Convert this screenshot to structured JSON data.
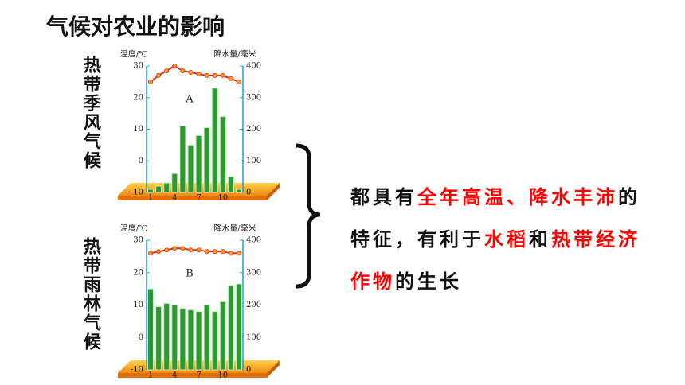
{
  "slide": {
    "title": "气候对农业的影响",
    "labels": [
      "热带季风气候",
      "热带雨林气候"
    ],
    "conclusion": [
      {
        "text": "都具有",
        "highlight": false
      },
      {
        "text": "全年高温、降水丰沛",
        "highlight": true
      },
      {
        "text": "的特征，有利于",
        "highlight": false
      },
      {
        "text": "水稻",
        "highlight": true
      },
      {
        "text": "和",
        "highlight": false
      },
      {
        "text": "热带经济作物",
        "highlight": true
      },
      {
        "text": "的生长",
        "highlight": false
      }
    ]
  },
  "chart_data": [
    {
      "type": "combo",
      "annotation": "A",
      "ylabel": "温度/℃",
      "y2label": "降水量/毫米",
      "categories": [
        1,
        null,
        null,
        4,
        null,
        null,
        7,
        null,
        null,
        10,
        null,
        null
      ],
      "ylim": [
        -10,
        30
      ],
      "yticks": [
        -10,
        0,
        10,
        20,
        30
      ],
      "y2lim": [
        0,
        400
      ],
      "y2ticks": [
        0,
        100,
        200,
        300,
        400
      ],
      "series": [
        {
          "type": "line",
          "color": "#d8321c",
          "marker_color": "#ff9a1e",
          "values": [
            25,
            27,
            28.5,
            30,
            28.5,
            28,
            27.5,
            27,
            27,
            27,
            26,
            25
          ]
        },
        {
          "type": "bar",
          "axis": "y2",
          "color": "#2f9a2f",
          "values": [
            10,
            20,
            30,
            60,
            210,
            150,
            180,
            205,
            330,
            240,
            50,
            10
          ]
        }
      ]
    },
    {
      "type": "combo",
      "annotation": "B",
      "ylabel": "温度/℃",
      "y2label": "降水量/毫米",
      "categories": [
        1,
        null,
        null,
        4,
        null,
        null,
        7,
        null,
        null,
        10,
        null,
        null
      ],
      "ylim": [
        -10,
        30
      ],
      "yticks": [
        -10,
        0,
        10,
        20,
        30
      ],
      "y2lim": [
        0,
        400
      ],
      "y2ticks": [
        0,
        100,
        200,
        300,
        400
      ],
      "series": [
        {
          "type": "line",
          "color": "#d8321c",
          "marker_color": "#ff9a1e",
          "values": [
            26,
            26.5,
            27,
            27.5,
            27.5,
            27,
            27,
            26.5,
            26.5,
            26.5,
            26,
            26
          ]
        },
        {
          "type": "bar",
          "axis": "y2",
          "color": "#2f9a2f",
          "values": [
            250,
            195,
            205,
            200,
            190,
            185,
            180,
            200,
            180,
            210,
            260,
            265
          ]
        }
      ]
    }
  ]
}
